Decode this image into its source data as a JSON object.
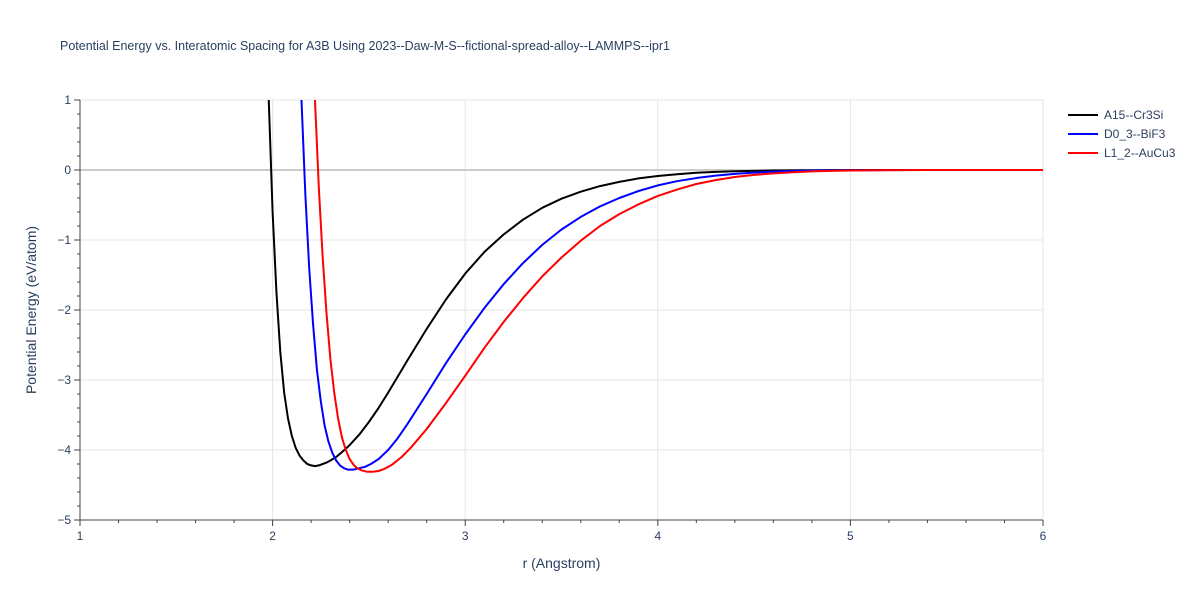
{
  "chart_data": {
    "type": "line",
    "title": "Potential Energy vs. Interatomic Spacing for A3B Using 2023--Daw-M-S--fictional-spread-alloy--LAMMPS--ipr1",
    "xlabel": "r (Angstrom)",
    "ylabel": "Potential Energy (eV/atom)",
    "xlim": [
      1,
      6
    ],
    "ylim": [
      -5,
      1
    ],
    "xticks": [
      1,
      2,
      3,
      4,
      5,
      6
    ],
    "xtick_labels": [
      "1",
      "2",
      "3",
      "4",
      "5",
      "6"
    ],
    "yticks": [
      1,
      0,
      -1,
      -2,
      -3,
      -4,
      -5
    ],
    "ytick_labels": [
      "1",
      "0",
      "−1",
      "−2",
      "−3",
      "−4",
      "−5"
    ],
    "grid": true,
    "legend_position": "top-right",
    "series": [
      {
        "name": "A15--Cr3Si",
        "color": "#000000",
        "x": [
          1.98,
          2.0,
          2.02,
          2.04,
          2.06,
          2.08,
          2.1,
          2.12,
          2.14,
          2.16,
          2.18,
          2.2,
          2.22,
          2.24,
          2.26,
          2.28,
          2.3,
          2.33,
          2.36,
          2.4,
          2.45,
          2.5,
          2.55,
          2.6,
          2.7,
          2.8,
          2.9,
          3.0,
          3.1,
          3.2,
          3.3,
          3.4,
          3.5,
          3.6,
          3.7,
          3.8,
          3.9,
          4.0,
          4.1,
          4.2,
          4.3,
          4.4,
          4.5,
          4.6,
          4.7,
          4.8,
          4.9,
          5.0,
          5.2,
          5.4,
          5.6,
          5.8,
          6.0
        ],
        "y": [
          1.0,
          -0.6,
          -1.75,
          -2.6,
          -3.18,
          -3.55,
          -3.8,
          -3.97,
          -4.08,
          -4.15,
          -4.2,
          -4.22,
          -4.23,
          -4.22,
          -4.2,
          -4.18,
          -4.15,
          -4.1,
          -4.03,
          -3.93,
          -3.78,
          -3.6,
          -3.4,
          -3.18,
          -2.72,
          -2.27,
          -1.85,
          -1.48,
          -1.17,
          -0.92,
          -0.71,
          -0.54,
          -0.41,
          -0.31,
          -0.23,
          -0.17,
          -0.12,
          -0.085,
          -0.06,
          -0.04,
          -0.027,
          -0.018,
          -0.012,
          -0.008,
          -0.005,
          -0.003,
          -0.002,
          -0.001,
          0.0,
          0.0,
          0.0,
          0.0,
          0.0
        ]
      },
      {
        "name": "D0_3--BiF3",
        "color": "#0000ff",
        "x": [
          2.15,
          2.17,
          2.19,
          2.21,
          2.23,
          2.25,
          2.27,
          2.29,
          2.31,
          2.33,
          2.35,
          2.37,
          2.39,
          2.42,
          2.45,
          2.48,
          2.51,
          2.55,
          2.6,
          2.65,
          2.7,
          2.8,
          2.9,
          3.0,
          3.1,
          3.2,
          3.3,
          3.4,
          3.5,
          3.6,
          3.7,
          3.8,
          3.9,
          4.0,
          4.1,
          4.2,
          4.3,
          4.4,
          4.5,
          4.6,
          4.7,
          4.8,
          4.9,
          5.0,
          5.2,
          5.4,
          5.6,
          5.8,
          6.0
        ],
        "y": [
          1.0,
          -0.35,
          -1.4,
          -2.2,
          -2.85,
          -3.3,
          -3.65,
          -3.88,
          -4.04,
          -4.15,
          -4.22,
          -4.26,
          -4.28,
          -4.28,
          -4.26,
          -4.24,
          -4.2,
          -4.13,
          -4.0,
          -3.83,
          -3.63,
          -3.2,
          -2.76,
          -2.35,
          -1.97,
          -1.63,
          -1.33,
          -1.07,
          -0.85,
          -0.67,
          -0.52,
          -0.4,
          -0.3,
          -0.22,
          -0.16,
          -0.115,
          -0.08,
          -0.055,
          -0.037,
          -0.024,
          -0.015,
          -0.009,
          -0.005,
          -0.003,
          -0.001,
          0.0,
          0.0,
          0.0,
          0.0
        ]
      },
      {
        "name": "L1_2--AuCu3",
        "color": "#ff0000",
        "x": [
          2.22,
          2.24,
          2.26,
          2.28,
          2.3,
          2.32,
          2.34,
          2.36,
          2.38,
          2.4,
          2.42,
          2.44,
          2.46,
          2.49,
          2.52,
          2.55,
          2.58,
          2.62,
          2.67,
          2.72,
          2.8,
          2.9,
          3.0,
          3.1,
          3.2,
          3.3,
          3.4,
          3.5,
          3.6,
          3.7,
          3.8,
          3.9,
          4.0,
          4.1,
          4.2,
          4.3,
          4.4,
          4.5,
          4.6,
          4.7,
          4.8,
          4.9,
          5.0,
          5.2,
          5.4,
          5.6,
          5.8,
          6.0
        ],
        "y": [
          1.0,
          -0.25,
          -1.25,
          -2.05,
          -2.7,
          -3.18,
          -3.55,
          -3.82,
          -4.0,
          -4.13,
          -4.21,
          -4.26,
          -4.29,
          -4.31,
          -4.31,
          -4.3,
          -4.27,
          -4.21,
          -4.1,
          -3.96,
          -3.7,
          -3.33,
          -2.94,
          -2.54,
          -2.17,
          -1.83,
          -1.52,
          -1.25,
          -1.01,
          -0.8,
          -0.63,
          -0.49,
          -0.37,
          -0.28,
          -0.2,
          -0.145,
          -0.1,
          -0.07,
          -0.048,
          -0.032,
          -0.02,
          -0.012,
          -0.007,
          -0.002,
          0.0,
          0.0,
          0.0,
          0.0
        ]
      }
    ]
  }
}
